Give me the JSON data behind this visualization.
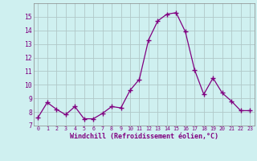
{
  "x": [
    0,
    1,
    2,
    3,
    4,
    5,
    6,
    7,
    8,
    9,
    10,
    11,
    12,
    13,
    14,
    15,
    16,
    17,
    18,
    19,
    20,
    21,
    22,
    23
  ],
  "y": [
    7.6,
    8.7,
    8.2,
    7.8,
    8.4,
    7.5,
    7.5,
    7.9,
    8.4,
    8.3,
    9.6,
    10.4,
    13.3,
    14.7,
    15.2,
    15.3,
    13.9,
    11.1,
    9.3,
    10.5,
    9.4,
    8.8,
    8.1,
    8.1
  ],
  "line_color": "#800080",
  "marker": "+",
  "marker_size": 4,
  "bg_color": "#cff0f0",
  "grid_color": "#b0c8c8",
  "xlabel": "Windchill (Refroidissement éolien,°C)",
  "ylim": [
    7,
    16
  ],
  "xlim_min": -0.5,
  "xlim_max": 23.5,
  "yticks": [
    7,
    8,
    9,
    10,
    11,
    12,
    13,
    14,
    15
  ],
  "xticks": [
    0,
    1,
    2,
    3,
    4,
    5,
    6,
    7,
    8,
    9,
    10,
    11,
    12,
    13,
    14,
    15,
    16,
    17,
    18,
    19,
    20,
    21,
    22,
    23
  ],
  "tick_color": "#800080",
  "label_color": "#800080"
}
